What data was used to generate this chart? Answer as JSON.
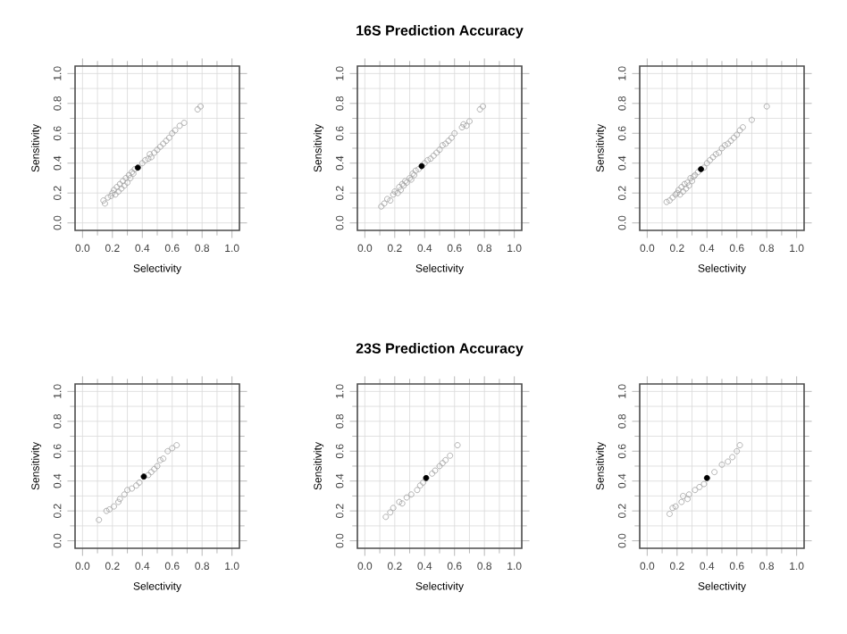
{
  "chart_data": [
    {
      "type": "scatter",
      "xlabel": "Selectivity",
      "ylabel": "Sensitivity",
      "xlim": [
        -0.05,
        1.05
      ],
      "ylim": [
        -0.05,
        1.05
      ],
      "xticks": [
        {
          "value": 0,
          "label": "0.0"
        },
        {
          "value": 0.2,
          "label": "0.2"
        },
        {
          "value": 0.4,
          "label": "0.4"
        },
        {
          "value": 0.6,
          "label": "0.6"
        },
        {
          "value": 0.8,
          "label": "0.8"
        },
        {
          "value": 1,
          "label": "1.0"
        }
      ],
      "yticks": [
        {
          "value": 0,
          "label": "0.0"
        },
        {
          "value": 0.2,
          "label": "0.2"
        },
        {
          "value": 0.4,
          "label": "0.4"
        },
        {
          "value": 0.6,
          "label": "0.6"
        },
        {
          "value": 0.8,
          "label": "0.8"
        },
        {
          "value": 1,
          "label": "1.0"
        }
      ],
      "grid": true,
      "marker": "circle",
      "series": [
        {
          "color": "#a0a0a0",
          "x": [
            0.14,
            0.15,
            0.17,
            0.19,
            0.2,
            0.21,
            0.22,
            0.23,
            0.24,
            0.25,
            0.26,
            0.27,
            0.28,
            0.29,
            0.3,
            0.31,
            0.32,
            0.33,
            0.34,
            0.35,
            0.4,
            0.42,
            0.44,
            0.46,
            0.45,
            0.48,
            0.5,
            0.52,
            0.54,
            0.56,
            0.58,
            0.6,
            0.62,
            0.65,
            0.68,
            0.77,
            0.79
          ],
          "values": [
            0.15,
            0.13,
            0.17,
            0.18,
            0.2,
            0.22,
            0.19,
            0.24,
            0.21,
            0.26,
            0.23,
            0.28,
            0.25,
            0.3,
            0.27,
            0.32,
            0.3,
            0.34,
            0.33,
            0.36,
            0.4,
            0.42,
            0.43,
            0.44,
            0.46,
            0.47,
            0.49,
            0.51,
            0.53,
            0.55,
            0.57,
            0.6,
            0.62,
            0.65,
            0.67,
            0.76,
            0.78
          ]
        },
        {
          "color": "#000000",
          "x": [
            0.37
          ],
          "values": [
            0.37
          ]
        }
      ]
    },
    {
      "type": "scatter",
      "title": "16S Prediction Accuracy",
      "xlabel": "Selectivity",
      "ylabel": "Sensitivity",
      "xlim": [
        -0.05,
        1.05
      ],
      "ylim": [
        -0.05,
        1.05
      ],
      "xticks": [
        {
          "value": 0,
          "label": "0.0"
        },
        {
          "value": 0.2,
          "label": "0.2"
        },
        {
          "value": 0.4,
          "label": "0.4"
        },
        {
          "value": 0.6,
          "label": "0.6"
        },
        {
          "value": 0.8,
          "label": "0.8"
        },
        {
          "value": 1,
          "label": "1.0"
        }
      ],
      "yticks": [
        {
          "value": 0,
          "label": "0.0"
        },
        {
          "value": 0.2,
          "label": "0.2"
        },
        {
          "value": 0.4,
          "label": "0.4"
        },
        {
          "value": 0.6,
          "label": "0.6"
        },
        {
          "value": 0.8,
          "label": "0.8"
        },
        {
          "value": 1,
          "label": "1.0"
        }
      ],
      "grid": true,
      "marker": "circle",
      "series": [
        {
          "color": "#a0a0a0",
          "x": [
            0.11,
            0.13,
            0.15,
            0.17,
            0.19,
            0.2,
            0.22,
            0.23,
            0.24,
            0.25,
            0.26,
            0.27,
            0.28,
            0.3,
            0.31,
            0.32,
            0.33,
            0.34,
            0.36,
            0.4,
            0.42,
            0.44,
            0.46,
            0.48,
            0.5,
            0.52,
            0.54,
            0.56,
            0.58,
            0.6,
            0.65,
            0.66,
            0.68,
            0.7,
            0.77,
            0.79
          ],
          "values": [
            0.11,
            0.13,
            0.16,
            0.15,
            0.19,
            0.21,
            0.2,
            0.24,
            0.22,
            0.26,
            0.25,
            0.28,
            0.27,
            0.3,
            0.29,
            0.33,
            0.32,
            0.35,
            0.36,
            0.4,
            0.42,
            0.43,
            0.45,
            0.47,
            0.49,
            0.52,
            0.53,
            0.55,
            0.57,
            0.6,
            0.64,
            0.66,
            0.65,
            0.68,
            0.76,
            0.78
          ]
        },
        {
          "color": "#000000",
          "x": [
            0.38
          ],
          "values": [
            0.38
          ]
        }
      ]
    },
    {
      "type": "scatter",
      "xlabel": "Selectivity",
      "ylabel": "Sensitivity",
      "xlim": [
        -0.05,
        1.05
      ],
      "ylim": [
        -0.05,
        1.05
      ],
      "xticks": [
        {
          "value": 0,
          "label": "0.0"
        },
        {
          "value": 0.2,
          "label": "0.2"
        },
        {
          "value": 0.4,
          "label": "0.4"
        },
        {
          "value": 0.6,
          "label": "0.6"
        },
        {
          "value": 0.8,
          "label": "0.8"
        },
        {
          "value": 1,
          "label": "1.0"
        }
      ],
      "yticks": [
        {
          "value": 0,
          "label": "0.0"
        },
        {
          "value": 0.2,
          "label": "0.2"
        },
        {
          "value": 0.4,
          "label": "0.4"
        },
        {
          "value": 0.6,
          "label": "0.6"
        },
        {
          "value": 0.8,
          "label": "0.8"
        },
        {
          "value": 1,
          "label": "1.0"
        }
      ],
      "grid": true,
      "marker": "circle",
      "series": [
        {
          "color": "#a0a0a0",
          "x": [
            0.13,
            0.15,
            0.17,
            0.19,
            0.2,
            0.21,
            0.22,
            0.23,
            0.24,
            0.25,
            0.26,
            0.27,
            0.28,
            0.29,
            0.3,
            0.31,
            0.32,
            0.34,
            0.38,
            0.4,
            0.42,
            0.44,
            0.46,
            0.48,
            0.5,
            0.52,
            0.54,
            0.56,
            0.58,
            0.6,
            0.62,
            0.64,
            0.7,
            0.8
          ],
          "values": [
            0.14,
            0.15,
            0.17,
            0.19,
            0.2,
            0.22,
            0.19,
            0.24,
            0.21,
            0.26,
            0.23,
            0.27,
            0.25,
            0.3,
            0.28,
            0.31,
            0.32,
            0.34,
            0.37,
            0.4,
            0.42,
            0.44,
            0.46,
            0.47,
            0.5,
            0.52,
            0.53,
            0.55,
            0.57,
            0.59,
            0.62,
            0.64,
            0.69,
            0.78
          ]
        },
        {
          "color": "#000000",
          "x": [
            0.36
          ],
          "values": [
            0.36
          ]
        }
      ]
    },
    {
      "type": "scatter",
      "xlabel": "Selectivity",
      "ylabel": "Sensitivity",
      "xlim": [
        -0.05,
        1.05
      ],
      "ylim": [
        -0.05,
        1.05
      ],
      "xticks": [
        {
          "value": 0,
          "label": "0.0"
        },
        {
          "value": 0.2,
          "label": "0.2"
        },
        {
          "value": 0.4,
          "label": "0.4"
        },
        {
          "value": 0.6,
          "label": "0.6"
        },
        {
          "value": 0.8,
          "label": "0.8"
        },
        {
          "value": 1,
          "label": "1.0"
        }
      ],
      "yticks": [
        {
          "value": 0,
          "label": "0.0"
        },
        {
          "value": 0.2,
          "label": "0.2"
        },
        {
          "value": 0.4,
          "label": "0.4"
        },
        {
          "value": 0.6,
          "label": "0.6"
        },
        {
          "value": 0.8,
          "label": "0.8"
        },
        {
          "value": 1,
          "label": "1.0"
        }
      ],
      "grid": true,
      "marker": "circle",
      "series": [
        {
          "color": "#a0a0a0",
          "x": [
            0.11,
            0.16,
            0.18,
            0.21,
            0.24,
            0.25,
            0.28,
            0.3,
            0.33,
            0.36,
            0.38,
            0.44,
            0.46,
            0.48,
            0.5,
            0.52,
            0.54,
            0.57,
            0.6,
            0.63
          ],
          "values": [
            0.14,
            0.2,
            0.21,
            0.23,
            0.26,
            0.28,
            0.31,
            0.34,
            0.35,
            0.37,
            0.39,
            0.44,
            0.46,
            0.48,
            0.5,
            0.54,
            0.55,
            0.6,
            0.62,
            0.64
          ]
        },
        {
          "color": "#000000",
          "x": [
            0.41
          ],
          "values": [
            0.43
          ]
        }
      ]
    },
    {
      "type": "scatter",
      "title": "23S Prediction Accuracy",
      "xlabel": "Selectivity",
      "ylabel": "Sensitivity",
      "xlim": [
        -0.05,
        1.05
      ],
      "ylim": [
        -0.05,
        1.05
      ],
      "xticks": [
        {
          "value": 0,
          "label": "0.0"
        },
        {
          "value": 0.2,
          "label": "0.2"
        },
        {
          "value": 0.4,
          "label": "0.4"
        },
        {
          "value": 0.6,
          "label": "0.6"
        },
        {
          "value": 0.8,
          "label": "0.8"
        },
        {
          "value": 1,
          "label": "1.0"
        }
      ],
      "yticks": [
        {
          "value": 0,
          "label": "0.0"
        },
        {
          "value": 0.2,
          "label": "0.2"
        },
        {
          "value": 0.4,
          "label": "0.4"
        },
        {
          "value": 0.6,
          "label": "0.6"
        },
        {
          "value": 0.8,
          "label": "0.8"
        },
        {
          "value": 1,
          "label": "1.0"
        }
      ],
      "grid": true,
      "marker": "circle",
      "series": [
        {
          "color": "#a0a0a0",
          "x": [
            0.14,
            0.17,
            0.19,
            0.23,
            0.25,
            0.28,
            0.31,
            0.35,
            0.37,
            0.39,
            0.45,
            0.47,
            0.5,
            0.52,
            0.54,
            0.57,
            0.62
          ],
          "values": [
            0.16,
            0.19,
            0.22,
            0.26,
            0.25,
            0.29,
            0.31,
            0.34,
            0.37,
            0.39,
            0.45,
            0.47,
            0.5,
            0.52,
            0.54,
            0.57,
            0.64
          ]
        },
        {
          "color": "#000000",
          "x": [
            0.41
          ],
          "values": [
            0.42
          ]
        }
      ]
    },
    {
      "type": "scatter",
      "xlabel": "Selectivity",
      "ylabel": "Sensitivity",
      "xlim": [
        -0.05,
        1.05
      ],
      "ylim": [
        -0.05,
        1.05
      ],
      "xticks": [
        {
          "value": 0,
          "label": "0.0"
        },
        {
          "value": 0.2,
          "label": "0.2"
        },
        {
          "value": 0.4,
          "label": "0.4"
        },
        {
          "value": 0.6,
          "label": "0.6"
        },
        {
          "value": 0.8,
          "label": "0.8"
        },
        {
          "value": 1,
          "label": "1.0"
        }
      ],
      "yticks": [
        {
          "value": 0,
          "label": "0.0"
        },
        {
          "value": 0.2,
          "label": "0.2"
        },
        {
          "value": 0.4,
          "label": "0.4"
        },
        {
          "value": 0.6,
          "label": "0.6"
        },
        {
          "value": 0.8,
          "label": "0.8"
        },
        {
          "value": 1,
          "label": "1.0"
        }
      ],
      "grid": true,
      "marker": "circle",
      "series": [
        {
          "color": "#a0a0a0",
          "x": [
            0.15,
            0.17,
            0.19,
            0.23,
            0.24,
            0.27,
            0.28,
            0.32,
            0.35,
            0.38,
            0.45,
            0.5,
            0.54,
            0.57,
            0.6,
            0.62
          ],
          "values": [
            0.18,
            0.22,
            0.23,
            0.26,
            0.3,
            0.28,
            0.31,
            0.34,
            0.36,
            0.38,
            0.46,
            0.51,
            0.53,
            0.56,
            0.6,
            0.64
          ]
        },
        {
          "color": "#000000",
          "x": [
            0.4
          ],
          "values": [
            0.42
          ]
        }
      ]
    }
  ]
}
